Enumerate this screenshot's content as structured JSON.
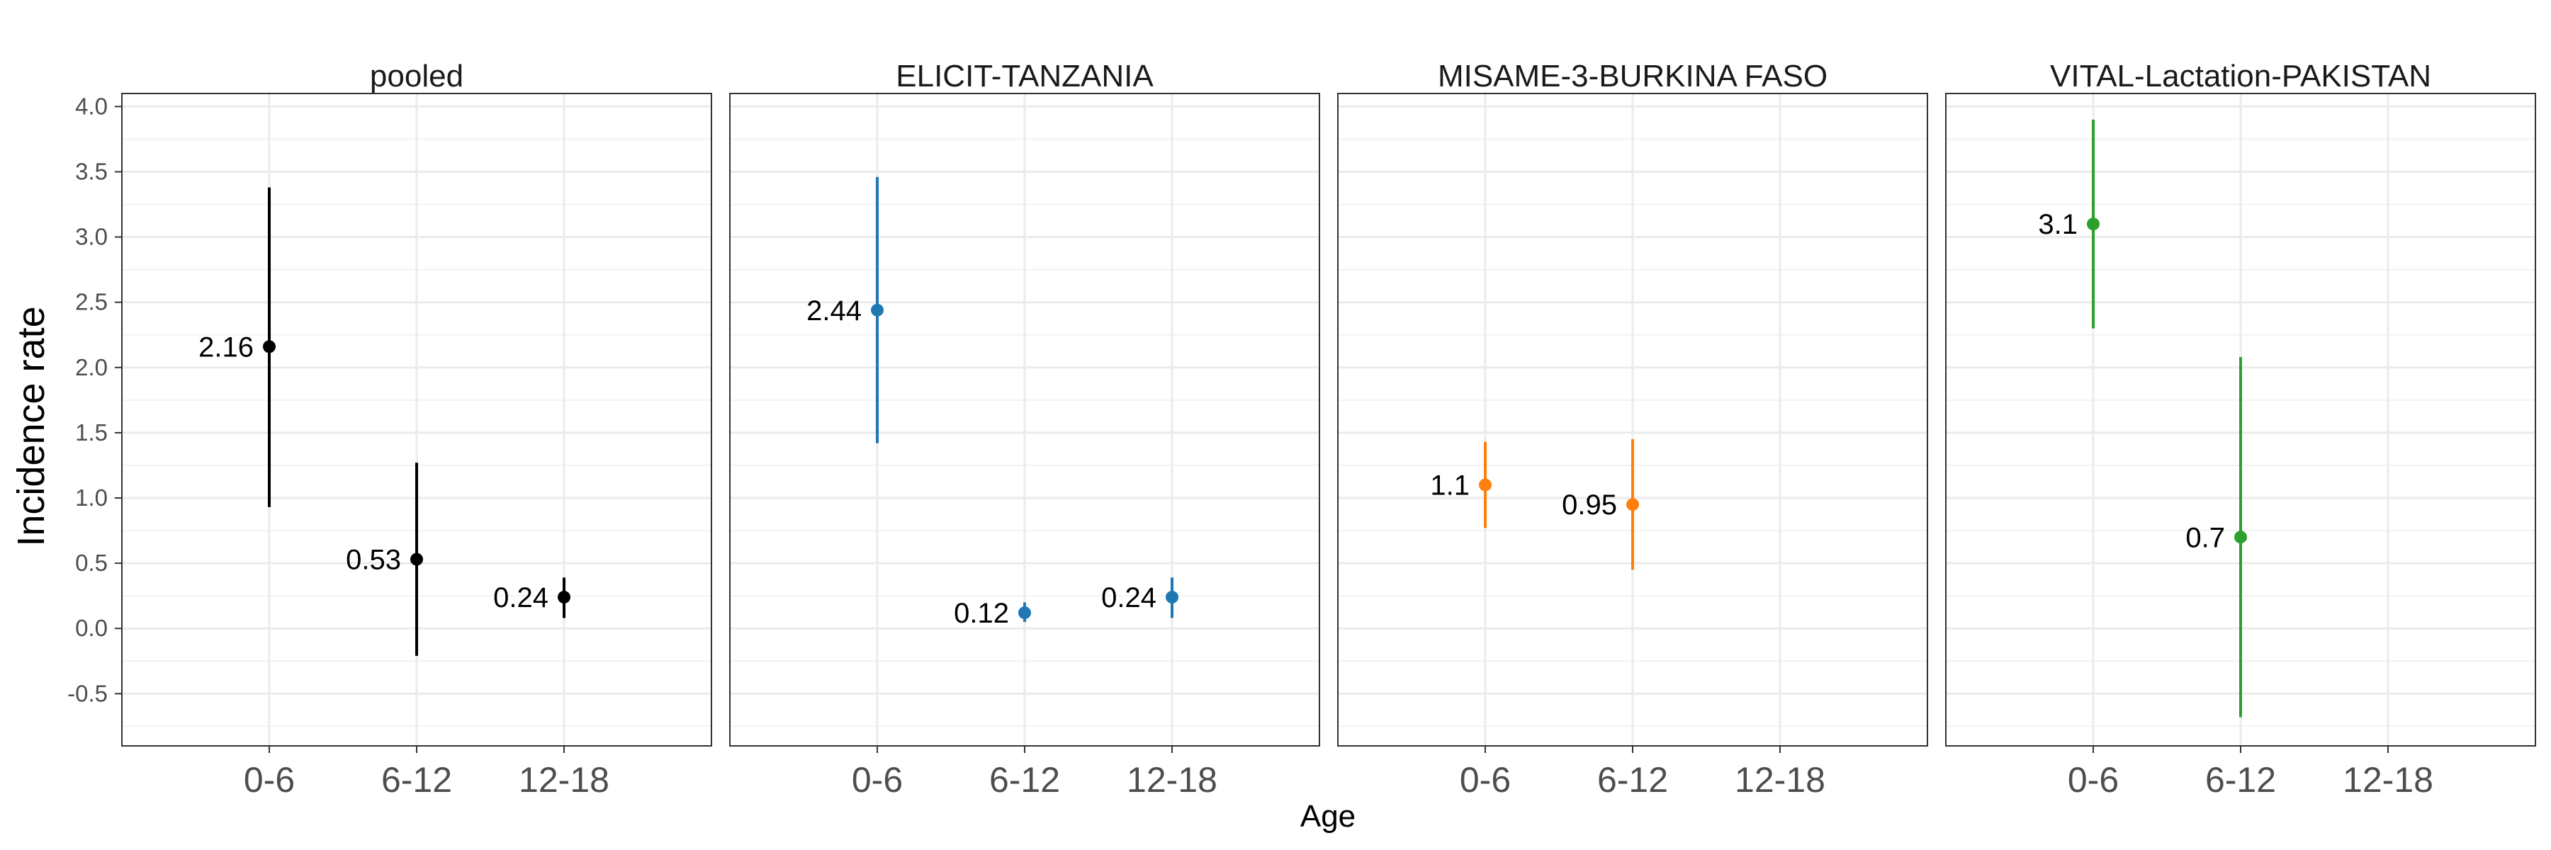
{
  "chart_data": {
    "type": "scatter",
    "xlabel": "Age",
    "ylabel": "Incidence rate",
    "categories": [
      "0-6",
      "6-12",
      "12-18"
    ],
    "yticks": [
      -0.5,
      0.0,
      0.5,
      1.0,
      1.5,
      2.0,
      2.5,
      3.0,
      3.5,
      4.0
    ],
    "ytick_labels": [
      "-0.5",
      "0.0",
      "0.5",
      "1.0",
      "1.5",
      "2.0",
      "2.5",
      "3.0",
      "3.5",
      "4.0"
    ],
    "ylim": [
      -0.9,
      4.1
    ],
    "grid": true,
    "legend": "none",
    "panels": [
      {
        "title": "pooled",
        "color": "#000000",
        "points": [
          {
            "x": "0-6",
            "y": 2.16,
            "lower": 0.93,
            "upper": 3.38,
            "label": "2.16"
          },
          {
            "x": "6-12",
            "y": 0.53,
            "lower": -0.21,
            "upper": 1.27,
            "label": "0.53"
          },
          {
            "x": "12-18",
            "y": 0.24,
            "lower": 0.08,
            "upper": 0.39,
            "label": "0.24"
          }
        ]
      },
      {
        "title": "ELICIT-TANZANIA",
        "color": "#1f77b4",
        "points": [
          {
            "x": "0-6",
            "y": 2.44,
            "lower": 1.42,
            "upper": 3.46,
            "label": "2.44"
          },
          {
            "x": "6-12",
            "y": 0.12,
            "lower": 0.05,
            "upper": 0.2,
            "label": "0.12"
          },
          {
            "x": "12-18",
            "y": 0.24,
            "lower": 0.08,
            "upper": 0.39,
            "label": "0.24"
          }
        ]
      },
      {
        "title": "MISAME-3-BURKINA FASO",
        "color": "#ff7f0e",
        "points": [
          {
            "x": "0-6",
            "y": 1.1,
            "lower": 0.77,
            "upper": 1.43,
            "label": "1.1"
          },
          {
            "x": "6-12",
            "y": 0.95,
            "lower": 0.45,
            "upper": 1.45,
            "label": "0.95"
          }
        ]
      },
      {
        "title": "VITAL-Lactation-PAKISTAN",
        "color": "#2ca02c",
        "points": [
          {
            "x": "0-6",
            "y": 3.1,
            "lower": 2.3,
            "upper": 3.9,
            "label": "3.1"
          },
          {
            "x": "6-12",
            "y": 0.7,
            "lower": -0.68,
            "upper": 2.08,
            "label": "0.7"
          }
        ]
      }
    ]
  }
}
